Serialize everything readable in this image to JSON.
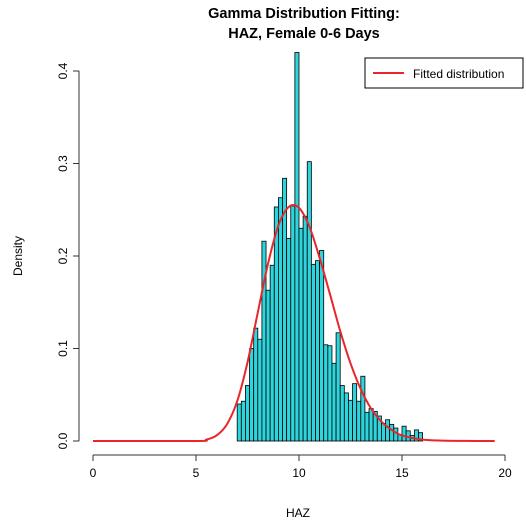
{
  "chart_data": {
    "type": "bar",
    "title_lines": [
      "Gamma Distribution Fitting:",
      "HAZ, Female 0-6 Days"
    ],
    "xlabel": "HAZ",
    "ylabel": "Density",
    "xlim": [
      0,
      20
    ],
    "ylim": [
      0,
      0.4
    ],
    "x_ticks": [
      "0",
      "5",
      "10",
      "15",
      "20"
    ],
    "y_ticks": [
      "0.0",
      "0.1",
      "0.2",
      "0.3",
      "0.4"
    ],
    "grid": false,
    "legend": {
      "position": "top-right",
      "entries": [
        "Fitted distribution"
      ]
    },
    "colors": {
      "bars": "#2FD5DC",
      "bar_edge": "#000000",
      "curve": "#E8262B",
      "axis": "#333333"
    },
    "histogram": {
      "bin_width": 0.2,
      "start": 7.0,
      "densities": [
        0.04,
        0.043,
        0.06,
        0.1,
        0.122,
        0.11,
        0.216,
        0.163,
        0.19,
        0.253,
        0.263,
        0.284,
        0.219,
        0.254,
        0.42,
        0.23,
        0.243,
        0.302,
        0.191,
        0.195,
        0.206,
        0.104,
        0.103,
        0.084,
        0.117,
        0.06,
        0.052,
        0.044,
        0.062,
        0.043,
        0.07,
        0.031,
        0.035,
        0.032,
        0.027,
        0.019,
        0.023,
        0.018,
        0.014,
        0.007,
        0.016,
        0.011,
        0.006,
        0.012,
        0.009
      ]
    },
    "fitted_curve": {
      "name": "Fitted distribution",
      "x": [
        0,
        5,
        5.5,
        6,
        6.5,
        7,
        7.5,
        8,
        8.5,
        9,
        9.5,
        10,
        10.5,
        11,
        11.5,
        12,
        12.5,
        13,
        13.5,
        14,
        14.5,
        15,
        16,
        17,
        18,
        19.5
      ],
      "y": [
        0.0,
        0.0,
        0.0015,
        0.006,
        0.018,
        0.043,
        0.085,
        0.139,
        0.192,
        0.233,
        0.253,
        0.252,
        0.232,
        0.198,
        0.159,
        0.119,
        0.084,
        0.056,
        0.035,
        0.021,
        0.012,
        0.006,
        0.0015,
        0.0004,
        0.0001,
        0.0
      ]
    }
  }
}
